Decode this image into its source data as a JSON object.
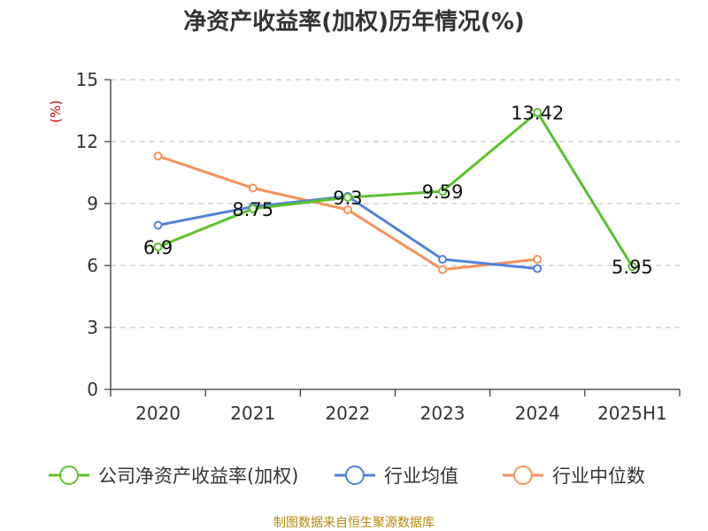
{
  "chart_data": {
    "type": "line",
    "title": "净资产收益率(加权)历年情况(%)",
    "ylabel": "(%)",
    "xlabel": "",
    "categories": [
      "2020",
      "2021",
      "2022",
      "2023",
      "2024",
      "2025H1"
    ],
    "ylim": [
      0,
      15
    ],
    "yticks": [
      0,
      3,
      6,
      9,
      12,
      15
    ],
    "grid": "horizontal dashed",
    "legend": "bottom",
    "series": [
      {
        "name": "公司净资产收益率(加权)",
        "color": "#5cc22c",
        "values": [
          6.9,
          8.75,
          9.3,
          9.59,
          13.42,
          5.95
        ],
        "data_labels": [
          "6.9",
          "8.75",
          "9.3",
          "9.59",
          "13.42",
          "5.95"
        ]
      },
      {
        "name": "行业均值",
        "color": "#4f82d8",
        "values": [
          7.95,
          8.85,
          9.35,
          6.3,
          5.85,
          null
        ]
      },
      {
        "name": "行业中位数",
        "color": "#f5925a",
        "values": [
          11.3,
          9.75,
          8.7,
          5.8,
          6.3,
          null
        ]
      }
    ],
    "source": "制图数据来自恒生聚源数据库"
  }
}
